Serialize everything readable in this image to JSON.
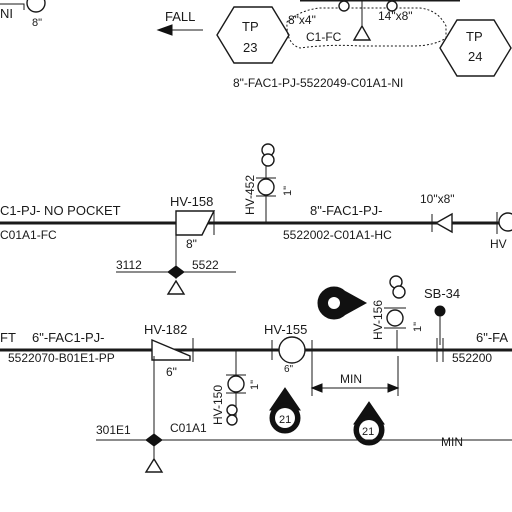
{
  "top": {
    "left_partial": "NI",
    "size_label_a": "8\"",
    "fall_label": "FALL",
    "reducer_label_a": "8\"x4\"",
    "reducer_label_b": "14\"x8\"",
    "fragment": "C1-FC",
    "tp23_label": "TP",
    "tp23_num": "23",
    "tp24_label": "TP",
    "tp24_num": "24",
    "line_number": "8\"-FAC1-PJ-5522049-C01A1-NI"
  },
  "middle": {
    "left_line_a": "C1-PJ- NO POCKET",
    "left_line_b": "C01A1-FC",
    "valve_158": "HV-158",
    "valve_158_size": "8\"",
    "valve_452": "HV-452",
    "valve_452_size": "1\"",
    "line_a": "8\"-FAC1-PJ-",
    "line_b": "5522002-C01A1-HC",
    "reducer": "10\"x8\"",
    "right_partial": "HV",
    "support_a": "3112",
    "support_b": "5522"
  },
  "bottom": {
    "ft_partial": "FT",
    "line_a": "6\"-FAC1-PJ-",
    "line_b": "5522070-B01E1-PP",
    "valve_182": "HV-182",
    "valve_182_size": "6\"",
    "valve_155": "HV-155",
    "valve_155_size": "6\"",
    "valve_150": "HV-150",
    "valve_150_size": "1\"",
    "valve_156": "HV-156",
    "valve_156_size": "1\"",
    "sb_label": "SB-34",
    "right_line_a": "6\"-FA",
    "right_line_b": "552200",
    "min_label_a": "MIN",
    "min_label_b": "MIN",
    "marker_1": "21",
    "marker_2": "21",
    "support_a": "301E1",
    "support_b": "C01A1"
  }
}
